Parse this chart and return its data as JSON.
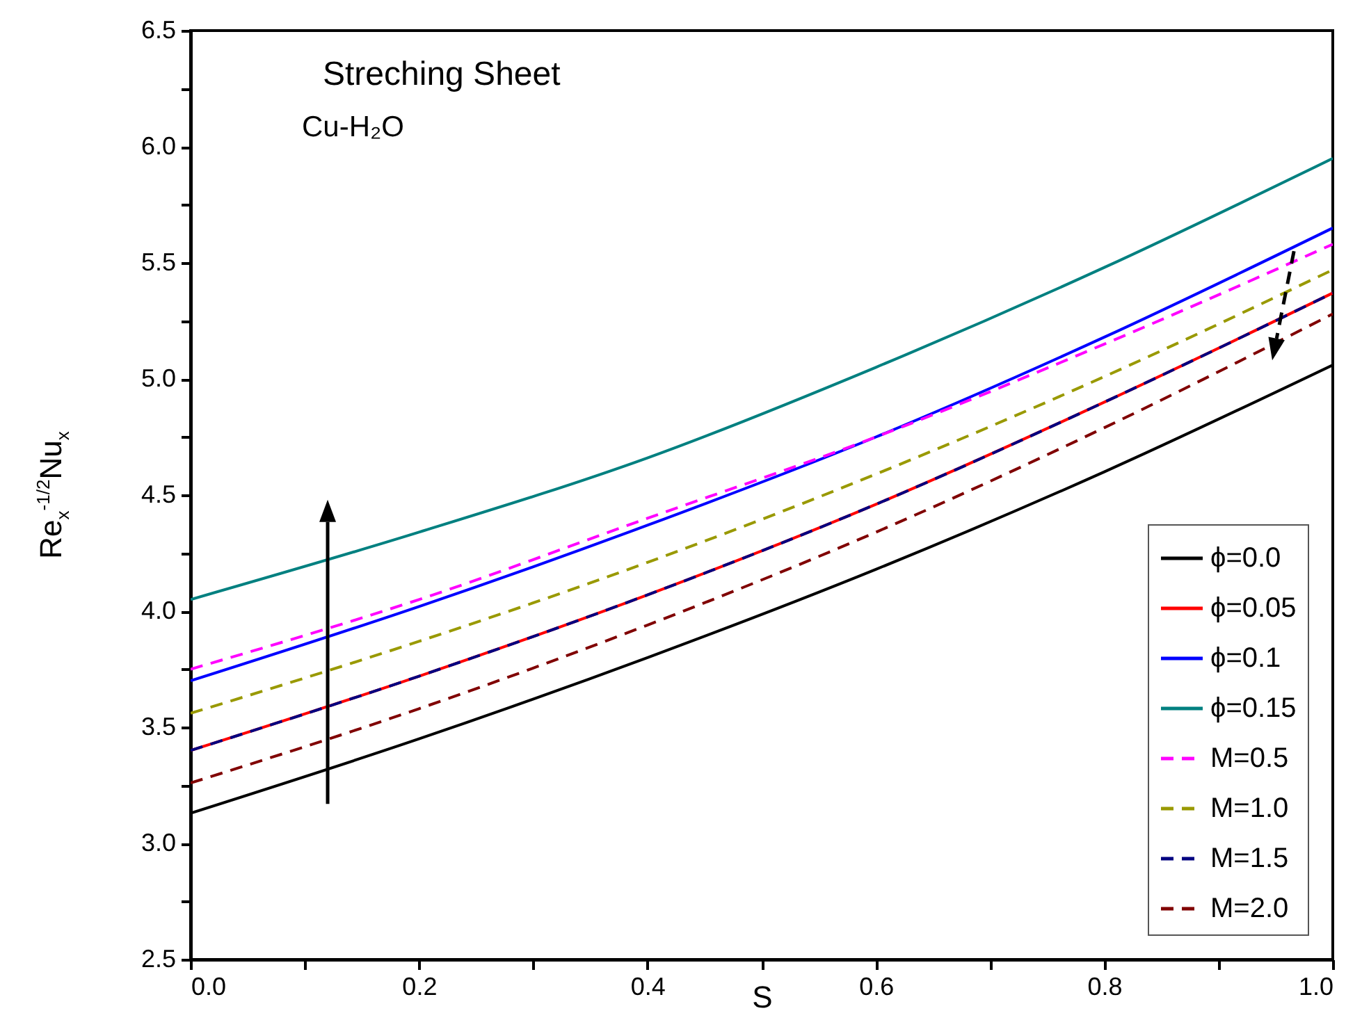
{
  "chart_data": {
    "type": "line",
    "xlabel": "S",
    "ylabel": "Re$_{x}$$^{-1/2}$Nu$_{x}$",
    "annotations": [
      "Streching Sheet",
      "Cu-H₂O"
    ],
    "x": [
      0,
      0.2,
      0.4,
      0.6,
      0.8,
      1.0
    ],
    "xlim": [
      0,
      1
    ],
    "ylim": [
      2.5,
      6.5
    ],
    "xticks": [
      {
        "value": 0,
        "label": "0.0"
      },
      {
        "value": 0.1,
        "label": null
      },
      0.2,
      {
        "value": 0.3,
        "label": null
      },
      0.4,
      {
        "value": 0.5,
        "label": null
      },
      0.6,
      {
        "value": 0.7,
        "label": null
      },
      0.8,
      {
        "value": 0.9,
        "label": null
      },
      {
        "value": 1,
        "label": "1.0"
      }
    ],
    "yticks": [
      2.5,
      {
        "value": 2.75,
        "label": null
      },
      {
        "value": 3,
        "label": "3.0"
      },
      {
        "value": 3.25,
        "label": null
      },
      3.5,
      {
        "value": 3.75,
        "label": null
      },
      {
        "value": 4,
        "label": "4.0"
      },
      {
        "value": 4.25,
        "label": null
      },
      4.5,
      {
        "value": 4.75,
        "label": null
      },
      {
        "value": 5,
        "label": "5.0"
      },
      {
        "value": 5.25,
        "label": null
      },
      5.5,
      {
        "value": 5.75,
        "label": null
      },
      {
        "value": 6,
        "label": "6.0"
      },
      {
        "value": 6.25,
        "label": null
      },
      6.5
    ],
    "grid": false,
    "legend": "bottom right",
    "series": [
      {
        "name": "ϕ=0.0",
        "color": "#000000",
        "line_style": "solid",
        "values": [
          3.13,
          3.45,
          3.8,
          4.18,
          4.6,
          5.06
        ]
      },
      {
        "name": "ϕ=0.05",
        "color": "#ff0000",
        "line_style": "solid",
        "values": [
          3.4,
          3.72,
          4.07,
          4.46,
          4.9,
          5.37
        ]
      },
      {
        "name": "ϕ=0.1",
        "color": "#0000ff",
        "line_style": "solid",
        "values": [
          3.7,
          4.02,
          4.37,
          4.75,
          5.18,
          5.65
        ]
      },
      {
        "name": "ϕ=0.15",
        "color": "#008080",
        "line_style": "solid",
        "values": [
          4.05,
          4.34,
          4.66,
          5.05,
          5.48,
          5.95
        ]
      },
      {
        "name": "M=0.5",
        "color": "#ff00ff",
        "line_style": "dashed",
        "values": [
          3.75,
          4.05,
          4.4,
          4.75,
          5.15,
          5.58
        ]
      },
      {
        "name": "M=1.0",
        "color": "#999900",
        "line_style": "dashed",
        "values": [
          3.56,
          3.87,
          4.21,
          4.59,
          5.01,
          5.47
        ]
      },
      {
        "name": "M=1.5",
        "color": "#000080",
        "line_style": "dashed",
        "values": [
          3.4,
          3.72,
          4.07,
          4.46,
          4.9,
          5.37
        ]
      },
      {
        "name": "M=2.0",
        "color": "#800000",
        "line_style": "dashed",
        "values": [
          3.26,
          3.58,
          3.94,
          4.34,
          4.79,
          5.28
        ]
      }
    ]
  }
}
